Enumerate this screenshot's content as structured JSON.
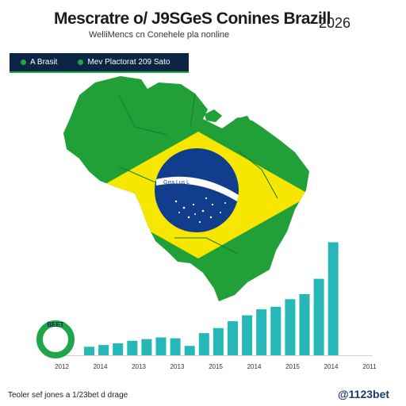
{
  "header": {
    "title": "Mescratre o/ J9SGeS Conines Brazill",
    "year": "2026",
    "subtitle": "WelliMencs cn Conehele pla nonline"
  },
  "legend": {
    "items": [
      {
        "label": "A Brasit",
        "color": "#1fa64a"
      },
      {
        "label": "Mev Plactorat 209 Sato",
        "color": "#1fa64a"
      }
    ],
    "bar_color": "#0b2545"
  },
  "flag": {
    "band_text": "Grra Lus L"
  },
  "badge": {
    "text": "BEET",
    "color": "#1fa64a"
  },
  "footer": {
    "left": "Teoler sef jones a 1/23bet d drage",
    "right": "@1123bet"
  },
  "colors": {
    "map_green": "#21a038",
    "flag_yellow": "#f7e600",
    "flag_blue": "#123c8c",
    "bar": "#26b8b8"
  },
  "chart_data": {
    "type": "bar",
    "values": [
      10,
      12,
      14,
      17,
      19,
      21,
      20,
      11,
      26,
      32,
      40,
      47,
      54,
      57,
      66,
      72,
      90,
      133
    ],
    "x_tick_labels": [
      "2012",
      "2014",
      "2013",
      "2013",
      "2015",
      "2014",
      "2015",
      "2014",
      "2011"
    ],
    "ylim": [
      0,
      140
    ],
    "grid": false
  }
}
